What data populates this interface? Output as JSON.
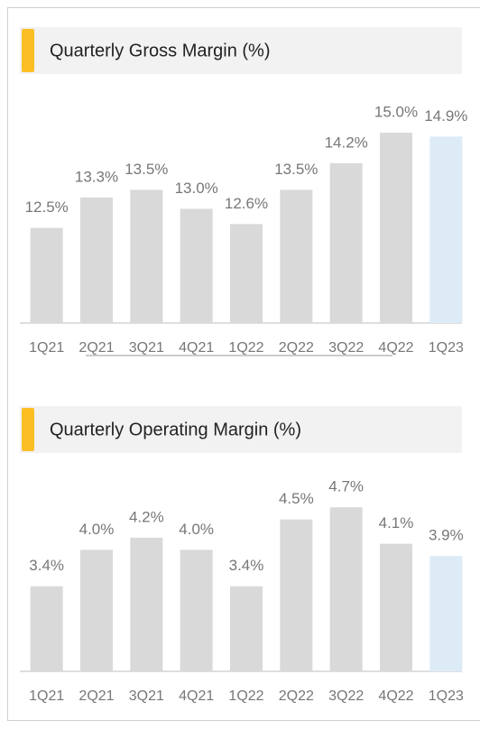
{
  "chart_data": [
    {
      "type": "bar",
      "title": "Quarterly Gross Margin (%)",
      "categories": [
        "1Q21",
        "2Q21",
        "3Q21",
        "4Q21",
        "1Q22",
        "2Q22",
        "3Q22",
        "4Q22",
        "1Q23"
      ],
      "values": [
        12.5,
        13.3,
        13.5,
        13.0,
        12.6,
        13.5,
        14.2,
        15.0,
        14.9
      ],
      "value_labels": [
        "12.5%",
        "13.3%",
        "13.5%",
        "13.0%",
        "12.6%",
        "13.5%",
        "14.2%",
        "15.0%",
        "14.9%"
      ],
      "colors": [
        "#d9d9d9",
        "#d9d9d9",
        "#d9d9d9",
        "#d9d9d9",
        "#d9d9d9",
        "#d9d9d9",
        "#d9d9d9",
        "#d9d9d9",
        "#ddebf7"
      ],
      "ylim": [
        10,
        15.5
      ]
    },
    {
      "type": "bar",
      "title": "Quarterly Operating Margin (%)",
      "categories": [
        "1Q21",
        "2Q21",
        "3Q21",
        "4Q21",
        "1Q22",
        "2Q22",
        "3Q22",
        "4Q22",
        "1Q23"
      ],
      "values": [
        3.4,
        4.0,
        4.2,
        4.0,
        3.4,
        4.5,
        4.7,
        4.1,
        3.9
      ],
      "value_labels": [
        "3.4%",
        "4.0%",
        "4.2%",
        "4.0%",
        "3.4%",
        "4.5%",
        "4.7%",
        "4.1%",
        "3.9%"
      ],
      "colors": [
        "#d9d9d9",
        "#d9d9d9",
        "#d9d9d9",
        "#d9d9d9",
        "#d9d9d9",
        "#d9d9d9",
        "#d9d9d9",
        "#d9d9d9",
        "#ddebf7"
      ],
      "ylim": [
        2,
        5
      ]
    }
  ]
}
